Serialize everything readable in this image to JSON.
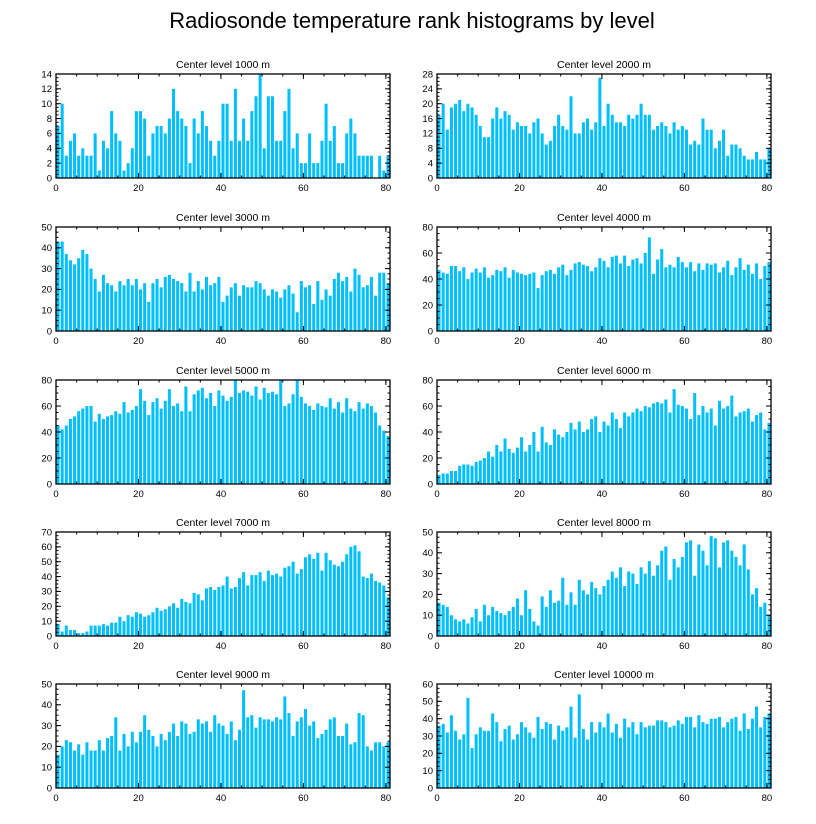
{
  "figure_title": "Radiosonde temperature rank histograms by level",
  "colors": {
    "bar": "#00BFFF",
    "axis": "#000000",
    "background": "#FFFFFF"
  },
  "chart_data": [
    {
      "type": "bar",
      "title": "Center level 1000 m",
      "ylim": [
        0,
        14
      ],
      "yticks": [
        0,
        2,
        4,
        6,
        8,
        10,
        12,
        14
      ],
      "xlim": [
        0,
        81
      ],
      "xticks": [
        0,
        20,
        40,
        60,
        80
      ],
      "values": [
        7,
        10,
        3,
        5,
        6,
        3,
        4,
        3,
        3,
        6,
        1,
        5,
        4,
        9,
        6,
        5,
        1,
        2,
        4,
        9,
        9,
        8,
        3,
        6,
        7,
        7,
        6,
        8,
        12,
        9,
        8,
        7,
        2,
        8,
        6,
        9,
        7,
        5,
        3,
        5,
        10,
        10,
        5,
        12,
        5,
        8,
        5,
        9,
        11,
        14,
        4,
        11,
        11,
        5,
        5,
        9,
        12,
        4,
        6,
        2,
        2,
        6,
        2,
        2,
        5,
        10,
        5,
        7,
        2,
        2,
        6,
        8,
        6,
        3,
        3,
        3,
        3,
        0,
        3,
        1,
        3
      ]
    },
    {
      "type": "bar",
      "title": "Center level 2000 m",
      "ylim": [
        0,
        28
      ],
      "yticks": [
        0,
        4,
        8,
        12,
        16,
        20,
        24,
        28
      ],
      "xlim": [
        0,
        81
      ],
      "xticks": [
        0,
        20,
        40,
        60,
        80
      ],
      "values": [
        17,
        20,
        13,
        19,
        20,
        21,
        18,
        20,
        19,
        17,
        14,
        11,
        11,
        16,
        19,
        16,
        18,
        17,
        13,
        15,
        14,
        14,
        12,
        15,
        16,
        12,
        9,
        10,
        14,
        17,
        14,
        13,
        22,
        12,
        12,
        15,
        16,
        13,
        15,
        27,
        14,
        20,
        17,
        15,
        15,
        14,
        17,
        16,
        17,
        20,
        17,
        17,
        13,
        14,
        15,
        14,
        12,
        15,
        13,
        14,
        13,
        9,
        10,
        9,
        16,
        13,
        13,
        8,
        10,
        13,
        6,
        9,
        9,
        8,
        6,
        5,
        5,
        7,
        5,
        5,
        8
      ]
    },
    {
      "type": "bar",
      "title": "Center level 3000 m",
      "ylim": [
        0,
        50
      ],
      "yticks": [
        0,
        10,
        20,
        30,
        40,
        50
      ],
      "xlim": [
        0,
        81
      ],
      "xticks": [
        0,
        20,
        40,
        60,
        80
      ],
      "values": [
        43,
        43,
        37,
        34,
        32,
        35,
        39,
        37,
        30,
        25,
        19,
        27,
        23,
        22,
        19,
        24,
        22,
        25,
        22,
        25,
        20,
        23,
        14,
        23,
        25,
        21,
        26,
        27,
        25,
        24,
        23,
        19,
        28,
        19,
        24,
        20,
        26,
        22,
        23,
        26,
        14,
        17,
        21,
        23,
        17,
        22,
        21,
        21,
        24,
        23,
        20,
        17,
        20,
        19,
        16,
        20,
        22,
        18,
        9,
        24,
        21,
        22,
        13,
        24,
        15,
        20,
        17,
        25,
        28,
        24,
        26,
        19,
        30,
        27,
        21,
        22,
        26,
        17,
        28,
        28,
        23
      ]
    },
    {
      "type": "bar",
      "title": "Center level 4000 m",
      "ylim": [
        0,
        80
      ],
      "yticks": [
        0,
        20,
        40,
        60,
        80
      ],
      "xlim": [
        0,
        81
      ],
      "xticks": [
        0,
        20,
        40,
        60,
        80
      ],
      "values": [
        47,
        45,
        44,
        50,
        50,
        46,
        49,
        40,
        45,
        48,
        45,
        49,
        41,
        43,
        47,
        46,
        49,
        41,
        47,
        45,
        44,
        43,
        44,
        45,
        33,
        43,
        46,
        47,
        44,
        49,
        51,
        43,
        47,
        52,
        53,
        51,
        50,
        46,
        49,
        56,
        54,
        49,
        57,
        58,
        52,
        58,
        50,
        55,
        56,
        52,
        60,
        72,
        44,
        55,
        63,
        49,
        51,
        49,
        57,
        53,
        49,
        53,
        46,
        52,
        47,
        52,
        51,
        52,
        45,
        49,
        54,
        43,
        49,
        56,
        47,
        51,
        44,
        52,
        40,
        50,
        53
      ]
    },
    {
      "type": "bar",
      "title": "Center level 5000 m",
      "ylim": [
        0,
        80
      ],
      "yticks": [
        0,
        20,
        40,
        60,
        80
      ],
      "xlim": [
        0,
        81
      ],
      "xticks": [
        0,
        20,
        40,
        60,
        80
      ],
      "values": [
        45,
        42,
        45,
        50,
        52,
        56,
        58,
        60,
        60,
        48,
        54,
        50,
        52,
        53,
        56,
        54,
        63,
        55,
        57,
        60,
        73,
        64,
        53,
        63,
        66,
        58,
        64,
        73,
        60,
        62,
        56,
        75,
        56,
        69,
        72,
        74,
        66,
        70,
        60,
        72,
        68,
        64,
        67,
        80,
        70,
        72,
        71,
        68,
        75,
        65,
        74,
        70,
        71,
        69,
        80,
        60,
        62,
        69,
        80,
        67,
        62,
        60,
        57,
        62,
        60,
        59,
        66,
        58,
        63,
        55,
        66,
        58,
        56,
        63,
        58,
        62,
        60,
        55,
        45,
        41,
        37
      ]
    },
    {
      "type": "bar",
      "title": "Center level 6000 m",
      "ylim": [
        0,
        80
      ],
      "yticks": [
        0,
        20,
        40,
        60,
        80
      ],
      "xlim": [
        0,
        81
      ],
      "xticks": [
        0,
        20,
        40,
        60,
        80
      ],
      "values": [
        7,
        8,
        8,
        10,
        10,
        14,
        15,
        15,
        14,
        17,
        18,
        20,
        25,
        21,
        30,
        25,
        35,
        27,
        24,
        28,
        36,
        25,
        30,
        40,
        25,
        44,
        32,
        30,
        42,
        38,
        36,
        40,
        47,
        42,
        48,
        40,
        42,
        50,
        52,
        40,
        48,
        45,
        55,
        50,
        43,
        55,
        52,
        55,
        58,
        56,
        60,
        59,
        62,
        63,
        62,
        65,
        55,
        73,
        61,
        60,
        58,
        50,
        70,
        53,
        60,
        55,
        58,
        45,
        64,
        58,
        60,
        68,
        52,
        55,
        56,
        58,
        48,
        53,
        55,
        42,
        47
      ]
    },
    {
      "type": "bar",
      "title": "Center level 7000 m",
      "ylim": [
        0,
        70
      ],
      "yticks": [
        0,
        10,
        20,
        30,
        40,
        50,
        60,
        70
      ],
      "xlim": [
        0,
        81
      ],
      "xticks": [
        0,
        20,
        40,
        60,
        80
      ],
      "values": [
        8,
        3,
        7,
        4,
        4,
        2,
        2,
        3,
        7,
        7,
        7,
        8,
        7,
        9,
        9,
        13,
        10,
        14,
        13,
        16,
        15,
        13,
        14,
        16,
        19,
        17,
        18,
        20,
        22,
        19,
        25,
        23,
        22,
        29,
        28,
        24,
        32,
        33,
        31,
        33,
        34,
        40,
        32,
        33,
        39,
        43,
        34,
        41,
        41,
        43,
        37,
        44,
        41,
        42,
        40,
        46,
        47,
        50,
        42,
        45,
        53,
        55,
        52,
        56,
        44,
        56,
        51,
        48,
        47,
        50,
        55,
        60,
        61,
        57,
        40,
        39,
        42,
        37,
        36,
        34,
        26
      ]
    },
    {
      "type": "bar",
      "title": "Center level 8000 m",
      "ylim": [
        0,
        50
      ],
      "yticks": [
        0,
        10,
        20,
        30,
        40,
        50
      ],
      "xlim": [
        0,
        81
      ],
      "xticks": [
        0,
        20,
        40,
        60,
        80
      ],
      "values": [
        16,
        15,
        14,
        10,
        8,
        7,
        8,
        6,
        9,
        13,
        7,
        15,
        10,
        14,
        12,
        11,
        10,
        12,
        14,
        18,
        10,
        22,
        13,
        7,
        5,
        19,
        14,
        22,
        16,
        17,
        28,
        15,
        21,
        15,
        27,
        22,
        20,
        26,
        23,
        20,
        24,
        27,
        31,
        28,
        33,
        24,
        31,
        30,
        25,
        33,
        30,
        36,
        29,
        34,
        41,
        43,
        27,
        37,
        33,
        38,
        45,
        46,
        29,
        44,
        41,
        34,
        48,
        47,
        33,
        45,
        46,
        41,
        38,
        34,
        44,
        32,
        20,
        23,
        14,
        16,
        10
      ]
    },
    {
      "type": "bar",
      "title": "Center level 9000 m",
      "ylim": [
        0,
        50
      ],
      "yticks": [
        0,
        10,
        20,
        30,
        40,
        50
      ],
      "xlim": [
        0,
        81
      ],
      "xticks": [
        0,
        20,
        40,
        60,
        80
      ],
      "values": [
        16,
        20,
        23,
        22,
        18,
        21,
        16,
        22,
        18,
        18,
        23,
        18,
        24,
        25,
        34,
        18,
        26,
        20,
        27,
        22,
        27,
        35,
        28,
        25,
        20,
        26,
        23,
        27,
        31,
        25,
        32,
        31,
        26,
        27,
        33,
        31,
        32,
        27,
        35,
        31,
        30,
        26,
        32,
        23,
        28,
        47,
        34,
        35,
        29,
        34,
        33,
        33,
        32,
        34,
        33,
        44,
        36,
        25,
        32,
        34,
        38,
        30,
        32,
        24,
        26,
        28,
        33,
        34,
        25,
        25,
        31,
        21,
        22,
        36,
        35,
        20,
        18,
        22,
        22,
        20,
        22
      ]
    },
    {
      "type": "bar",
      "title": "Center level 10000 m",
      "ylim": [
        0,
        60
      ],
      "yticks": [
        0,
        10,
        20,
        30,
        40,
        50,
        60
      ],
      "xlim": [
        0,
        81
      ],
      "xticks": [
        0,
        20,
        40,
        60,
        80
      ],
      "values": [
        36,
        37,
        32,
        42,
        33,
        28,
        31,
        52,
        23,
        31,
        35,
        33,
        33,
        43,
        38,
        27,
        34,
        36,
        28,
        31,
        38,
        35,
        32,
        29,
        41,
        34,
        38,
        37,
        28,
        36,
        33,
        35,
        47,
        29,
        54,
        34,
        28,
        38,
        32,
        38,
        35,
        43,
        32,
        37,
        29,
        40,
        35,
        38,
        31,
        38,
        35,
        36,
        36,
        39,
        39,
        38,
        35,
        36,
        39,
        37,
        41,
        41,
        35,
        42,
        38,
        37,
        40,
        40,
        41,
        35,
        38,
        40,
        41,
        33,
        43,
        34,
        40,
        47,
        35,
        41,
        43
      ]
    }
  ]
}
